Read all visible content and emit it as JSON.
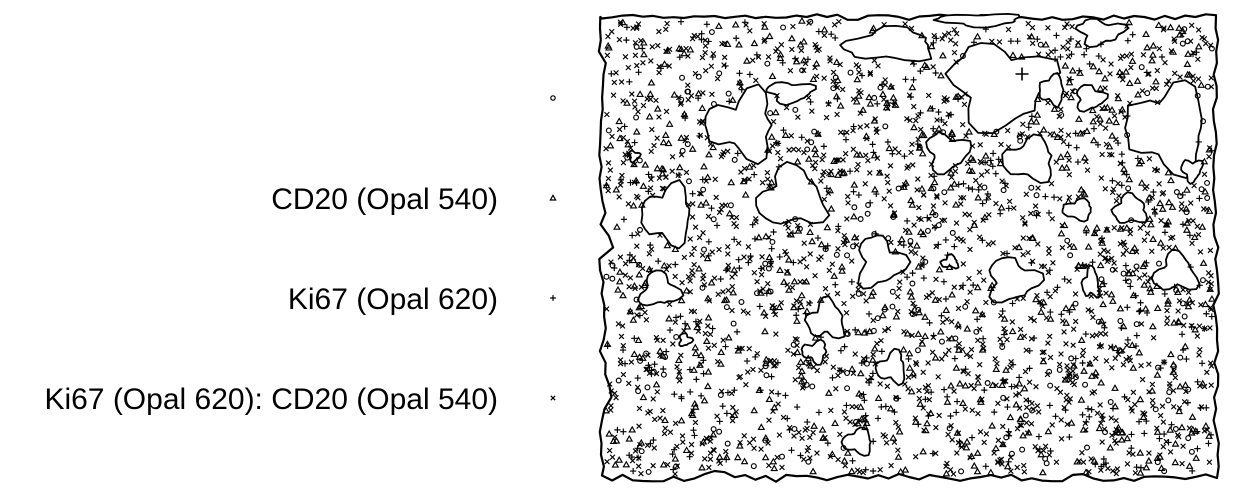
{
  "chart_data": {
    "type": "scatter",
    "title": "",
    "xlabel": "",
    "ylabel": "",
    "grid": false,
    "legend_placement": "left",
    "window": "irregular tissue outline with holes",
    "legend": [
      {
        "label": "",
        "symbol": "circle"
      },
      {
        "label": "CD20 (Opal 540)",
        "symbol": "triangle"
      },
      {
        "label": "Ki67 (Opal 620)",
        "symbol": "plus"
      },
      {
        "label": "Ki67 (Opal 620): CD20 (Opal 540)",
        "symbol": "cross"
      }
    ],
    "point_pattern": {
      "approx_total_points": 2600,
      "composition": {
        "cross": 0.5,
        "triangle": 0.25,
        "plus": 0.17,
        "circle": 0.08
      },
      "holes": 28
    }
  },
  "colors": {
    "ink": "#000000",
    "background": "#ffffff"
  }
}
